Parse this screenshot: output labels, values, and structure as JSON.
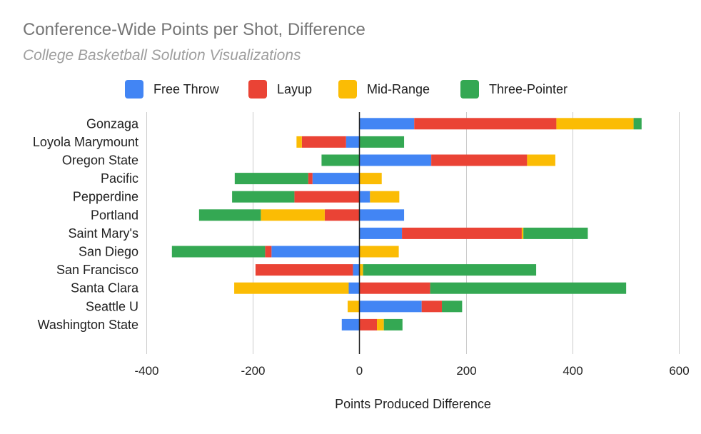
{
  "chart_data": {
    "type": "bar",
    "orientation": "horizontal",
    "stacked": true,
    "title": "Conference-Wide Points per Shot, Difference",
    "subtitle": "College Basketball Solution Visualizations",
    "xlabel": "Points Produced Difference",
    "ylabel": "",
    "xlim": [
      -400,
      600
    ],
    "xticks": [
      "-400",
      "-200",
      "0",
      "200",
      "400",
      "600"
    ],
    "xtick_values": [
      -400,
      -200,
      0,
      200,
      400,
      600
    ],
    "grid": true,
    "legend_position": "top",
    "categories": [
      "Gonzaga",
      "Loyola Marymount",
      "Oregon State",
      "Pacific",
      "Pepperdine",
      "Portland",
      "Saint Mary's",
      "San Diego",
      "San Francisco",
      "Santa Clara",
      "Seattle U",
      "Washington State"
    ],
    "series": [
      {
        "name": "Free Throw",
        "color": "#4285f4",
        "values": [
          103,
          -25,
          135,
          -88,
          20,
          84,
          80,
          -165,
          -12,
          -20,
          117,
          -33
        ]
      },
      {
        "name": "Layup",
        "color": "#ea4335",
        "values": [
          267,
          -83,
          180,
          -8,
          -122,
          -65,
          225,
          -12,
          -183,
          133,
          38,
          33
        ]
      },
      {
        "name": "Mid-Range",
        "color": "#fbbc04",
        "values": [
          145,
          -10,
          53,
          42,
          55,
          -120,
          3,
          74,
          7,
          -215,
          -22,
          13
        ]
      },
      {
        "name": "Three-Pointer",
        "color": "#34a853",
        "values": [
          15,
          84,
          -71,
          -138,
          -117,
          -116,
          121,
          -175,
          325,
          368,
          38,
          35
        ]
      }
    ]
  }
}
